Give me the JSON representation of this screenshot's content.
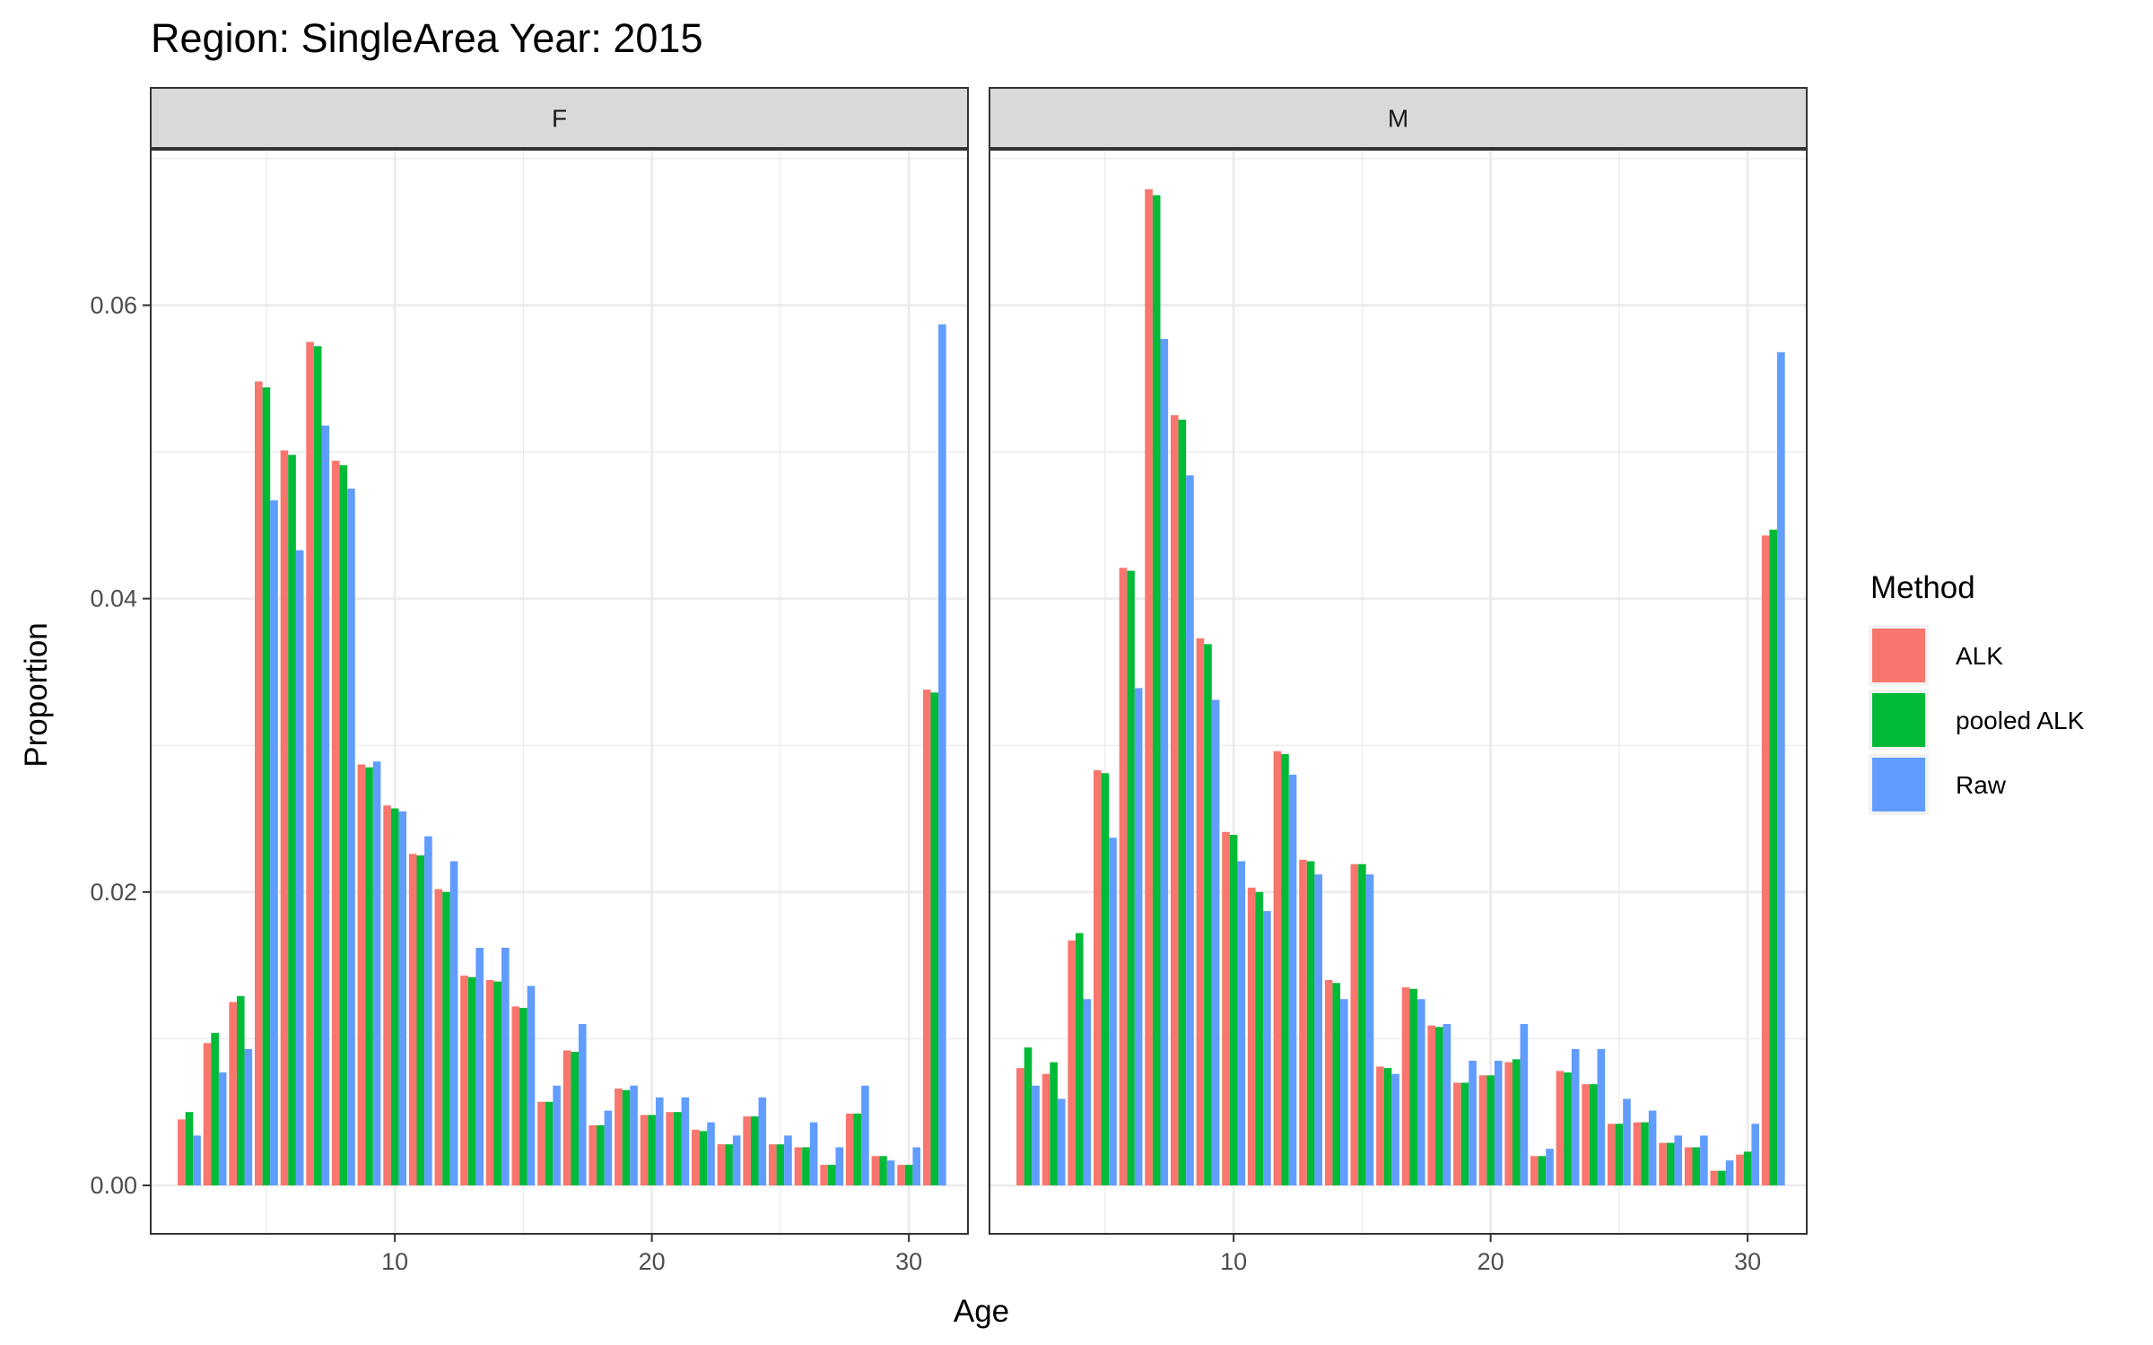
{
  "chart_data": {
    "type": "bar",
    "title": "Region: SingleArea Year: 2015",
    "xlabel": "Age",
    "ylabel": "Proportion",
    "xlim": [
      0.5,
      32.3
    ],
    "ylim": [
      -0.0033,
      0.0706
    ],
    "x_ticks": [
      10,
      20,
      30
    ],
    "x_tick_labels": [
      "10",
      "20",
      "30"
    ],
    "y_ticks": [
      0,
      0.02,
      0.04,
      0.06
    ],
    "y_tick_labels": [
      "0.00",
      "0.02",
      "0.04",
      "0.06"
    ],
    "grid": true,
    "legend": {
      "title": "Method",
      "placement": "right",
      "entries": [
        "ALK",
        "pooled ALK",
        "Raw"
      ]
    },
    "colors": {
      "ALK": "#F8766D",
      "pooled ALK": "#00BA38",
      "Raw": "#619CFF"
    },
    "x": [
      2,
      3,
      4,
      5,
      6,
      7,
      8,
      9,
      10,
      11,
      12,
      13,
      14,
      15,
      16,
      17,
      18,
      19,
      20,
      21,
      22,
      23,
      24,
      25,
      26,
      27,
      28,
      29,
      30,
      31
    ],
    "panels": [
      {
        "label": "F",
        "series": [
          {
            "name": "ALK",
            "values": [
              0.0045,
              0.0097,
              0.0125,
              0.0548,
              0.0501,
              0.0575,
              0.0494,
              0.0287,
              0.0259,
              0.0226,
              0.0202,
              0.0143,
              0.014,
              0.0122,
              0.0057,
              0.0092,
              0.0041,
              0.0066,
              0.0048,
              0.005,
              0.0038,
              0.0028,
              0.0047,
              0.0028,
              0.0026,
              0.0014,
              0.0049,
              0.002,
              0.0014,
              0.0338
            ]
          },
          {
            "name": "pooled ALK",
            "values": [
              0.005,
              0.0104,
              0.0129,
              0.0544,
              0.0498,
              0.0572,
              0.0491,
              0.0285,
              0.0257,
              0.0225,
              0.02,
              0.0142,
              0.0139,
              0.0121,
              0.0057,
              0.0091,
              0.0041,
              0.0065,
              0.0048,
              0.005,
              0.0037,
              0.0028,
              0.0047,
              0.0028,
              0.0026,
              0.0014,
              0.0049,
              0.002,
              0.0014,
              0.0336
            ]
          },
          {
            "name": "Raw",
            "values": [
              0.0034,
              0.0077,
              0.0093,
              0.0467,
              0.0433,
              0.0518,
              0.0475,
              0.0289,
              0.0255,
              0.0238,
              0.0221,
              0.0162,
              0.0162,
              0.0136,
              0.0068,
              0.011,
              0.0051,
              0.0068,
              0.006,
              0.006,
              0.0043,
              0.0034,
              0.006,
              0.0034,
              0.0043,
              0.0026,
              0.0068,
              0.0017,
              0.0026,
              0.0587
            ]
          }
        ]
      },
      {
        "label": "M",
        "series": [
          {
            "name": "ALK",
            "values": [
              0.008,
              0.0076,
              0.0167,
              0.0283,
              0.0421,
              0.0679,
              0.0525,
              0.0373,
              0.0241,
              0.0203,
              0.0296,
              0.0222,
              0.014,
              0.0219,
              0.0081,
              0.0135,
              0.0109,
              0.007,
              0.0075,
              0.0084,
              0.002,
              0.0078,
              0.0069,
              0.0042,
              0.0043,
              0.0029,
              0.0026,
              0.001,
              0.0021,
              0.0443
            ]
          },
          {
            "name": "pooled ALK",
            "values": [
              0.0094,
              0.0084,
              0.0172,
              0.0281,
              0.0419,
              0.0675,
              0.0522,
              0.0369,
              0.0239,
              0.02,
              0.0294,
              0.0221,
              0.0138,
              0.0219,
              0.008,
              0.0134,
              0.0108,
              0.007,
              0.0075,
              0.0086,
              0.002,
              0.0077,
              0.0069,
              0.0042,
              0.0043,
              0.0029,
              0.0026,
              0.001,
              0.0023,
              0.0447
            ]
          },
          {
            "name": "Raw",
            "values": [
              0.0068,
              0.0059,
              0.0127,
              0.0237,
              0.0339,
              0.0577,
              0.0484,
              0.0331,
              0.0221,
              0.0187,
              0.028,
              0.0212,
              0.0127,
              0.0212,
              0.0076,
              0.0127,
              0.011,
              0.0085,
              0.0085,
              0.011,
              0.0025,
              0.0093,
              0.0093,
              0.0059,
              0.0051,
              0.0034,
              0.0034,
              0.0017,
              0.0042,
              0.0568
            ]
          }
        ]
      }
    ]
  }
}
